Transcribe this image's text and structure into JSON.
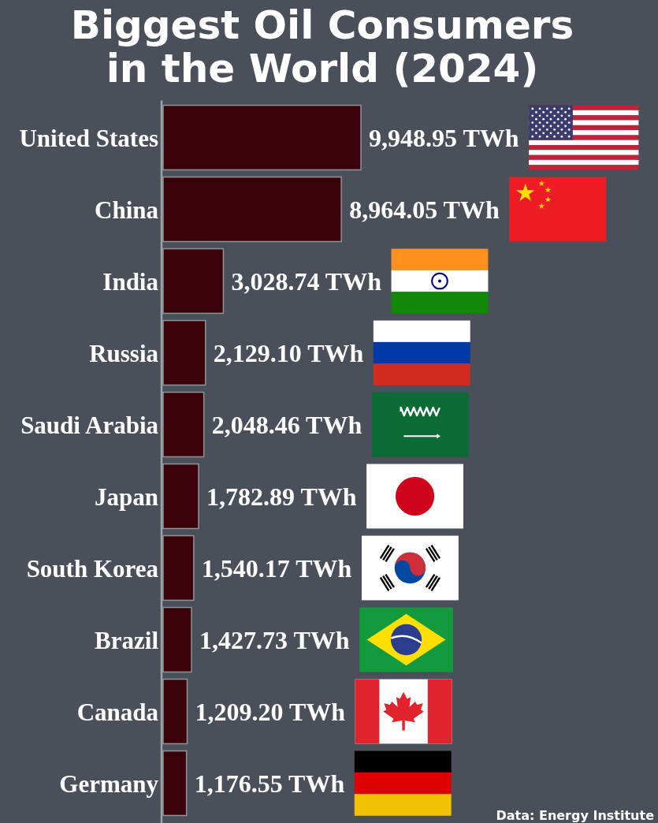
{
  "chart_data": {
    "type": "bar",
    "orientation": "horizontal",
    "title": "Biggest Oil Consumers in the World (2024)",
    "categories": [
      "United States",
      "China",
      "India",
      "Russia",
      "Saudi Arabia",
      "Japan",
      "South Korea",
      "Brazil",
      "Canada",
      "Germany"
    ],
    "values": [
      9948.95,
      8964.05,
      3028.74,
      2129.1,
      2048.46,
      1782.89,
      1540.17,
      1427.73,
      1209.2,
      1176.55
    ],
    "value_labels": [
      "9,948.95 TWh",
      "8,964.05 TWh",
      "3,028.74 TWh",
      "2,129.10 TWh",
      "2,048.46 TWh",
      "1,782.89 TWh",
      "1,540.17 TWh",
      "1,427.73 TWh",
      "1,209.20 TWh",
      "1,176.55 TWh"
    ],
    "color": "#3a030a",
    "tick_labels": "y",
    "annotations": [
      "Data: Energy Institute"
    ]
  }
}
